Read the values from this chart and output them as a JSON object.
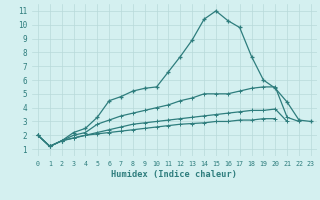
{
  "x": [
    0,
    1,
    2,
    3,
    4,
    5,
    6,
    7,
    8,
    9,
    10,
    11,
    12,
    13,
    14,
    15,
    16,
    17,
    18,
    19,
    20,
    21,
    22,
    23
  ],
  "line1": [
    2.0,
    1.2,
    1.6,
    2.2,
    2.5,
    3.3,
    4.5,
    4.8,
    5.2,
    5.4,
    5.5,
    6.6,
    7.7,
    8.9,
    10.4,
    11.0,
    10.3,
    9.8,
    7.7,
    6.0,
    5.4,
    4.4,
    3.1,
    3.0
  ],
  "line2": [
    2.0,
    1.2,
    1.6,
    2.0,
    2.2,
    2.8,
    3.1,
    3.4,
    3.6,
    3.8,
    4.0,
    4.2,
    4.5,
    4.7,
    5.0,
    5.0,
    5.0,
    5.2,
    5.4,
    5.5,
    5.5,
    3.3,
    3.0,
    null
  ],
  "line3": [
    2.0,
    1.2,
    1.6,
    1.8,
    2.0,
    2.2,
    2.4,
    2.6,
    2.8,
    2.9,
    3.0,
    3.1,
    3.2,
    3.3,
    3.4,
    3.5,
    3.6,
    3.7,
    3.8,
    3.8,
    3.9,
    3.0,
    null,
    null
  ],
  "line4": [
    2.0,
    1.2,
    1.6,
    1.8,
    2.0,
    2.1,
    2.2,
    2.3,
    2.4,
    2.5,
    2.6,
    2.7,
    2.8,
    2.85,
    2.9,
    3.0,
    3.0,
    3.1,
    3.1,
    3.2,
    3.2,
    null,
    null,
    null
  ],
  "color": "#2e7d7d",
  "bg_color": "#d4f0f0",
  "grid_color": "#b8dada",
  "xlabel": "Humidex (Indice chaleur)",
  "xlim": [
    -0.5,
    23.5
  ],
  "ylim": [
    0.5,
    11.5
  ],
  "xticks": [
    0,
    1,
    2,
    3,
    4,
    5,
    6,
    7,
    8,
    9,
    10,
    11,
    12,
    13,
    14,
    15,
    16,
    17,
    18,
    19,
    20,
    21,
    22,
    23
  ],
  "yticks": [
    1,
    2,
    3,
    4,
    5,
    6,
    7,
    8,
    9,
    10,
    11
  ]
}
